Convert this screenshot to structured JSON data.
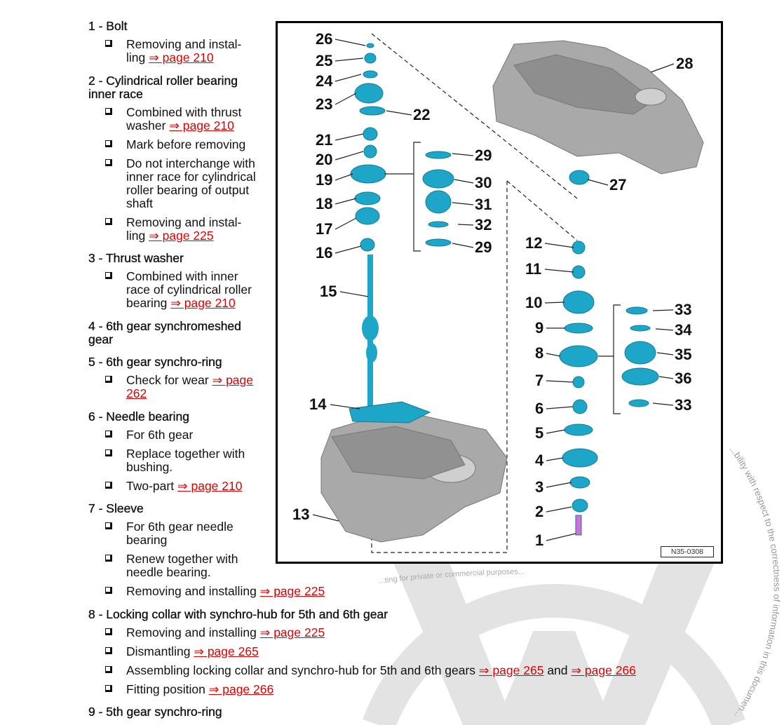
{
  "items": [
    {
      "title": "1 - Bolt",
      "bullets": [
        {
          "text": "Removing and instal-\nling ",
          "link": "⇒ page 210"
        }
      ]
    },
    {
      "title": "2 - Cylindrical roller bearing\ninner race",
      "bullets": [
        {
          "text": "Combined with thrust\nwasher ",
          "link": "⇒ page 210"
        },
        {
          "text": "Mark before removing"
        },
        {
          "text": "Do not interchange with\ninner race for cylindrical\nroller bearing of output\nshaft"
        },
        {
          "text": "Removing and instal-\nling ",
          "link": "⇒ page 225"
        }
      ]
    },
    {
      "title": "3 - Thrust washer",
      "bullets": [
        {
          "text": "Combined with inner\nrace of cylindrical roller\nbearing ",
          "link": "⇒ page 210"
        }
      ]
    },
    {
      "title": "4 - 6th gear synchromeshed\ngear",
      "bullets": []
    },
    {
      "title": "5 - 6th gear synchro-ring",
      "bullets": [
        {
          "text": "Check for wear ",
          "link": "⇒ page\n262"
        }
      ]
    },
    {
      "title": "6 - Needle bearing",
      "bullets": [
        {
          "text": "For 6th gear"
        },
        {
          "text": "Replace together with\nbushing."
        },
        {
          "text": "Two-part ",
          "link": "⇒ page 210"
        }
      ]
    },
    {
      "title": "7 - Sleeve",
      "bullets": [
        {
          "text": "For 6th gear needle\nbearing"
        },
        {
          "text": "Renew together with\nneedle bearing."
        },
        {
          "text": "Removing and installing ",
          "link": "⇒ page 225"
        }
      ]
    },
    {
      "title": "8 - Locking collar with synchro-hub for 5th and 6th gear",
      "bullets": [
        {
          "text": "Removing and installing ",
          "link": "⇒ page 225"
        },
        {
          "text": "Dismantling ",
          "link": "⇒ page 265"
        },
        {
          "text": "Assembling locking collar and synchro-hub for 5th and 6th gears ",
          "link": "⇒ page 265",
          "mid": " and ",
          "link2": "⇒ page 266"
        },
        {
          "text": "Fitting position ",
          "link": "⇒ page 266"
        }
      ]
    },
    {
      "title": "9 - 5th gear synchro-ring",
      "bullets": []
    }
  ],
  "diagram": {
    "figure_id": "N35-0308",
    "callouts": [
      "26",
      "25",
      "24",
      "23",
      "22",
      "21",
      "20",
      "19",
      "18",
      "17",
      "16",
      "15",
      "14",
      "13",
      "28",
      "27",
      "29",
      "30",
      "31",
      "32",
      "29",
      "12",
      "11",
      "10",
      "9",
      "8",
      "7",
      "6",
      "5",
      "4",
      "3",
      "2",
      "1",
      "33",
      "34",
      "35",
      "36",
      "33"
    ]
  },
  "watermark": {
    "text": "...bility with respect to the correctness of information in this documen...",
    "text_left": "...ting for private or commercial purposes..."
  },
  "colors": {
    "link": "#e00000",
    "part": "#1ea6c8",
    "housing": "#a8a8a8",
    "watermark": "#e3e3e3"
  }
}
